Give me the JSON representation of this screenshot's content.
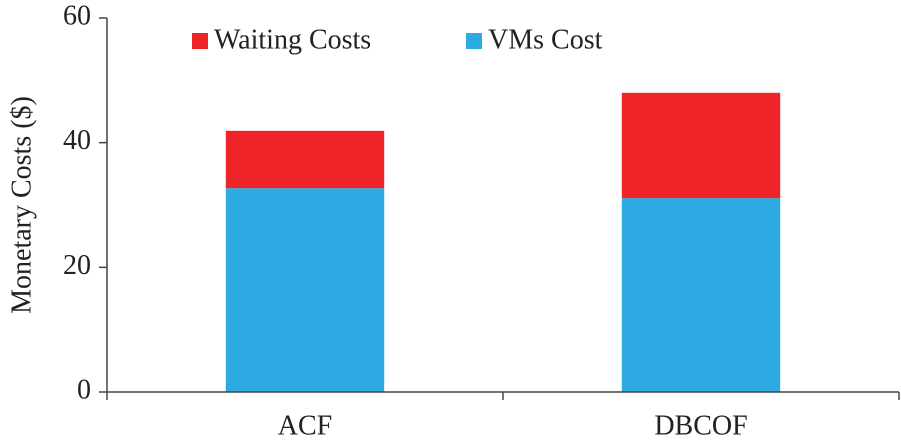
{
  "chart_data": {
    "type": "stacked_bar",
    "y_label": "Monetary Costs ($)",
    "categories": [
      "ACF",
      "DBCOF"
    ],
    "series": [
      {
        "name": "VMs Cost",
        "color": "#2eaae2",
        "values": [
          32.7,
          31.1
        ]
      },
      {
        "name": "Waiting Costs",
        "color": "#ee2428",
        "values": [
          9.2,
          16.9
        ]
      }
    ],
    "ylim": [
      0,
      60
    ],
    "yticks": [
      0,
      20,
      40,
      60
    ],
    "grid": false,
    "legend": "top"
  }
}
